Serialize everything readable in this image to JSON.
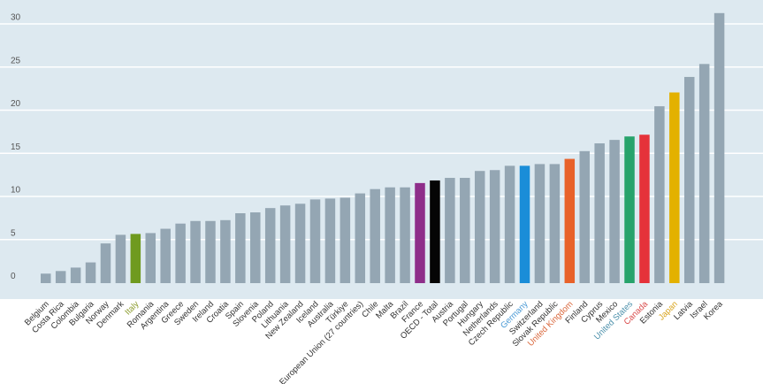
{
  "chart_data": {
    "type": "bar",
    "title": "",
    "xlabel": "",
    "ylabel": "",
    "ylim": [
      0,
      31
    ],
    "y_ticks": [
      0,
      5,
      10,
      15,
      20,
      25,
      30
    ],
    "grid": true,
    "categories": [
      "Belgium",
      "Costa Rica",
      "Colombia",
      "Bulgaria",
      "Norway",
      "Denmark",
      "Italy",
      "Romania",
      "Argentina",
      "Greece",
      "Sweden",
      "Ireland",
      "Croatia",
      "Spain",
      "Slovenia",
      "Poland",
      "Lithuania",
      "New Zealand",
      "Iceland",
      "Australia",
      "Türkiye",
      "European Union (27 countries)",
      "Chile",
      "Malta",
      "Brazil",
      "France",
      "OECD - Total",
      "Austria",
      "Portugal",
      "Hungary",
      "Netherlands",
      "Czech Republic",
      "Germany",
      "Switzerland",
      "Slovak Republic",
      "United Kingdom",
      "Finland",
      "Cyprus",
      "Mexico",
      "United States",
      "Canada",
      "Estonia",
      "Japan",
      "Latvia",
      "Israel",
      "Korea"
    ],
    "values": [
      1.0,
      1.3,
      1.7,
      2.3,
      4.5,
      5.5,
      5.6,
      5.7,
      6.2,
      6.8,
      7.1,
      7.1,
      7.2,
      8.0,
      8.1,
      8.6,
      8.9,
      9.1,
      9.6,
      9.7,
      9.8,
      10.3,
      10.8,
      11.0,
      11.0,
      11.5,
      11.8,
      12.1,
      12.1,
      12.9,
      13.0,
      13.5,
      13.5,
      13.7,
      13.7,
      14.3,
      15.2,
      16.1,
      16.5,
      16.9,
      17.1,
      20.4,
      22.0,
      23.8,
      25.3,
      31.2
    ],
    "colors": {
      "default": "#94a6b3",
      "Italy": "#6f9a1f",
      "France": "#8e2e8a",
      "OECD - Total": "#050505",
      "Germany": "#1a8dd8",
      "United Kingdom": "#e8622a",
      "United States": "#27a36b",
      "Canada": "#e5323a",
      "Japan": "#e3b100"
    },
    "label_colors": {
      "default": "#333333",
      "Italy": "#8a9a2a",
      "Germany": "#4a9ad5",
      "United Kingdom": "#d9663a",
      "United States": "#4a8faa",
      "Canada": "#d94a4a",
      "Japan": "#d9a520"
    },
    "plot_background": "#dde9f0"
  }
}
